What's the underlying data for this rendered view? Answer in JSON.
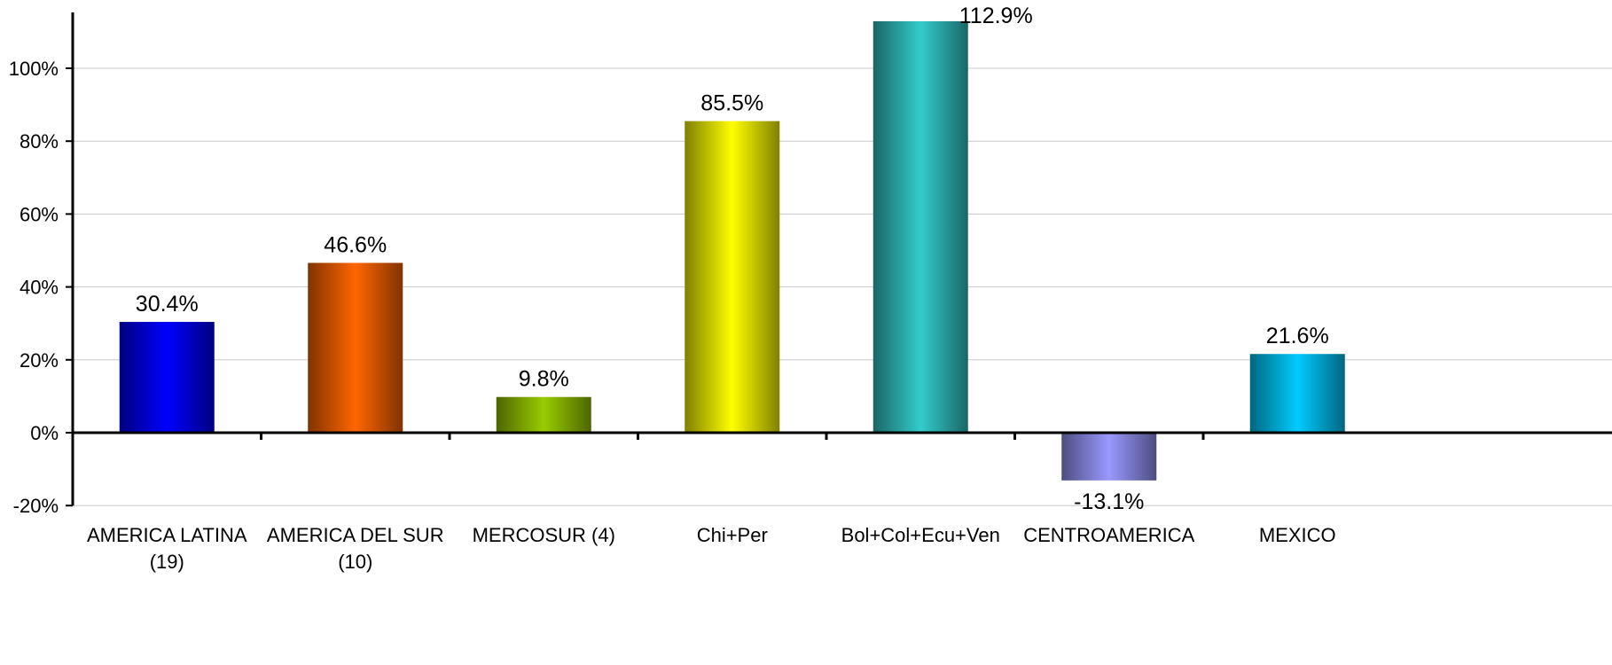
{
  "chart_data": {
    "type": "bar",
    "title": "",
    "xlabel": "",
    "ylabel": "",
    "categories": [
      [
        "AMERICA LATINA",
        "(19)"
      ],
      [
        "AMERICA DEL SUR",
        "(10)"
      ],
      [
        "MERCOSUR (4)"
      ],
      [
        "Chi+Per"
      ],
      [
        "Bol+Col+Ecu+Ven"
      ],
      [
        "CENTROAMERICA"
      ],
      [
        "MEXICO"
      ]
    ],
    "values": [
      30.4,
      46.6,
      9.8,
      85.5,
      112.9,
      -13.1,
      21.6
    ],
    "data_labels": [
      "30.4%",
      "46.6%",
      "9.8%",
      "85.5%",
      "112.9%",
      "-13.1%",
      "21.6%"
    ],
    "bar_colors": [
      "#0000ff",
      "#ff6600",
      "#99cc00",
      "#ffff00",
      "#33cccc",
      "#9999ff",
      "#00ccff"
    ],
    "bar_edge_colors": [
      "#000080",
      "#803300",
      "#4d6600",
      "#808000",
      "#1a6666",
      "#4d4d80",
      "#006680"
    ],
    "ylim": [
      -20,
      115
    ],
    "y_ticks": [
      -20,
      0,
      20,
      40,
      60,
      80,
      100
    ],
    "y_tick_labels": [
      "-20%",
      "0%",
      "20%",
      "40%",
      "60%",
      "80%",
      "100%"
    ],
    "grid": true,
    "legend": "none"
  }
}
